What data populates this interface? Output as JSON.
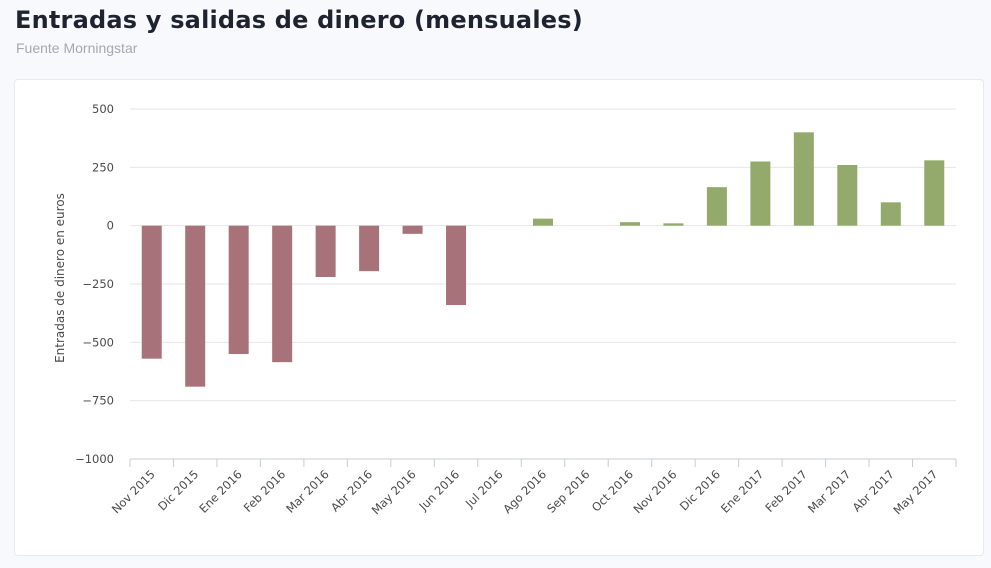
{
  "header": {
    "title": "Entradas y salidas de dinero (mensuales)",
    "subtitle": "Fuente Morningstar"
  },
  "chart_data": {
    "type": "bar",
    "title": "",
    "xlabel": "",
    "ylabel": "Entradas de dinero en euros",
    "ylim": [
      -1000,
      500
    ],
    "yticks": [
      500,
      250,
      0,
      -250,
      -500,
      -750,
      -1000
    ],
    "ytick_labels": [
      "500",
      "250",
      "0",
      "−250",
      "−500",
      "−750",
      "−1000"
    ],
    "grid": true,
    "legend": "none",
    "categories": [
      "Nov 2015",
      "Dic 2015",
      "Ene 2016",
      "Feb 2016",
      "Mar 2016",
      "Abr 2016",
      "May 2016",
      "Jun 2016",
      "Jul 2016",
      "Ago 2016",
      "Sep 2016",
      "Oct 2016",
      "Nov 2016",
      "Dic 2016",
      "Ene 2017",
      "Feb 2017",
      "Mar 2017",
      "Abr 2017",
      "May 2017"
    ],
    "values": [
      -570,
      -690,
      -550,
      -585,
      -220,
      -195,
      -35,
      -340,
      0,
      30,
      0,
      15,
      10,
      165,
      275,
      400,
      260,
      100,
      280
    ],
    "colors": {
      "negative": "#a8727a",
      "positive": "#93aa6c"
    }
  }
}
